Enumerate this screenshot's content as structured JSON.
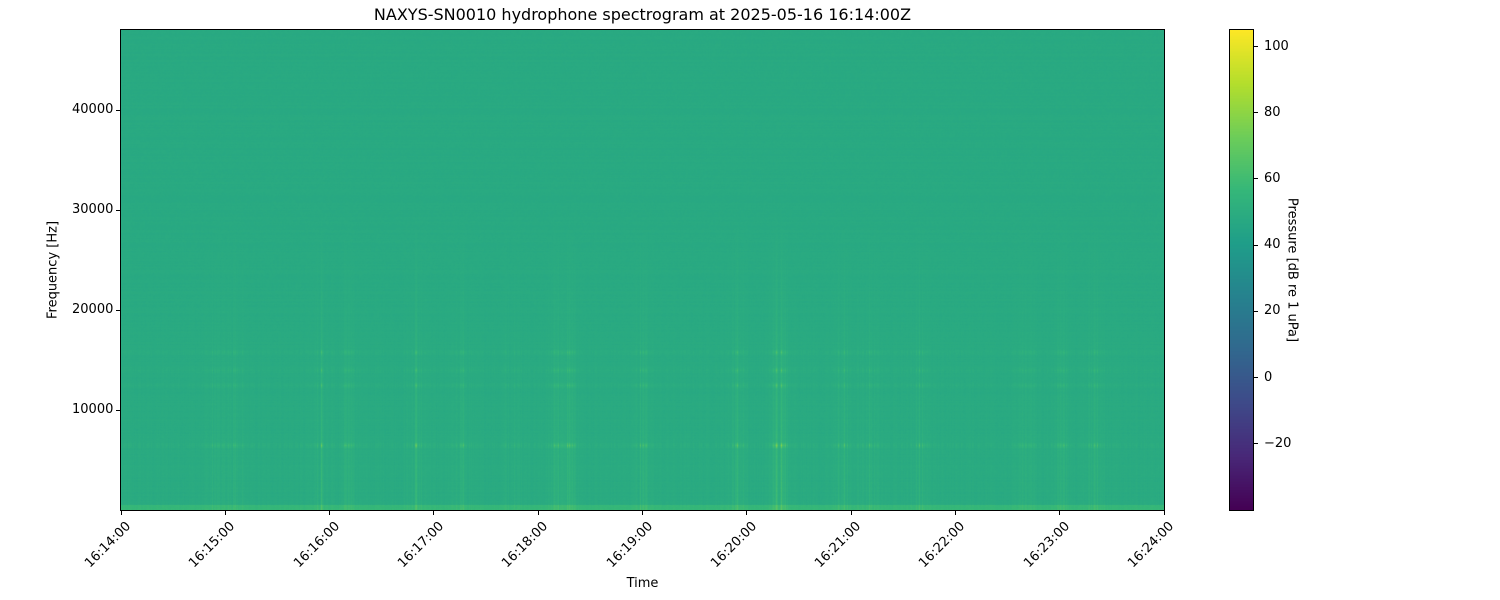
{
  "chart_data": {
    "type": "heatmap",
    "title": "NAXYS-SN0010 hydrophone spectrogram at 2025-05-16 16:14:00Z",
    "xlabel": "Time",
    "ylabel": "Frequency [Hz]",
    "colorbar_label": "Pressure [dB re 1 uPa]",
    "colormap": "viridis",
    "xlim": [
      "16:14:00",
      "16:24:00"
    ],
    "ylim": [
      0,
      48000
    ],
    "clim": [
      -40,
      105
    ],
    "xticks": [
      "16:14:00",
      "16:15:00",
      "16:16:00",
      "16:17:00",
      "16:18:00",
      "16:19:00",
      "16:20:00",
      "16:21:00",
      "16:22:00",
      "16:23:00",
      "16:24:00"
    ],
    "yticks": [
      10000,
      20000,
      30000,
      40000
    ],
    "cbar_ticks": [
      -20,
      0,
      20,
      40,
      60,
      80,
      100
    ],
    "background_level_db": 48,
    "tonal_bands_hz": [
      {
        "freq": 6500,
        "level_db": 68
      },
      {
        "freq": 12500,
        "level_db": 58
      },
      {
        "freq": 14000,
        "level_db": 58
      },
      {
        "freq": 15800,
        "level_db": 58
      }
    ],
    "broadband_events": [
      "16:14:55",
      "16:15:05",
      "16:15:55",
      "16:16:10",
      "16:16:50",
      "16:17:15",
      "16:17:45",
      "16:18:10",
      "16:18:18",
      "16:19:00",
      "16:19:55",
      "16:20:17",
      "16:20:20",
      "16:20:55",
      "16:21:10",
      "16:21:40",
      "16:22:40",
      "16:23:00",
      "16:23:20"
    ]
  }
}
